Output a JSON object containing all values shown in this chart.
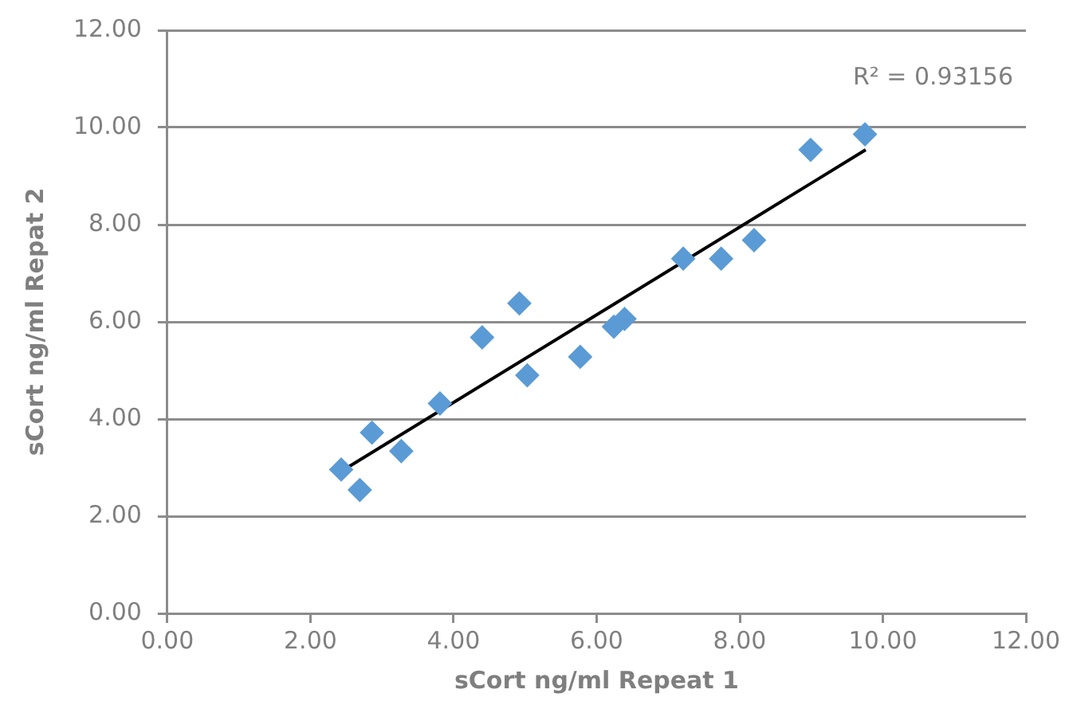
{
  "chart_data": {
    "type": "scatter",
    "xlabel": "sCort ng/ml Repeat 1",
    "ylabel": "sCort ng/ml Repat 2",
    "marker": "diamond",
    "grid": "y",
    "legend": false,
    "xlim": [
      0,
      12
    ],
    "xticks": [
      {
        "value": 0,
        "label": "0.00"
      },
      {
        "value": 2,
        "label": "2.00"
      },
      {
        "value": 4,
        "label": "4.00"
      },
      {
        "value": 6,
        "label": "6.00"
      },
      {
        "value": 8,
        "label": "8.00"
      },
      {
        "value": 10,
        "label": "10.00"
      },
      {
        "value": 12,
        "label": "12.00"
      }
    ],
    "ylim": [
      0,
      12
    ],
    "yticks": [
      {
        "value": 0,
        "label": "0.00"
      },
      {
        "value": 2,
        "label": "2.00"
      },
      {
        "value": 4,
        "label": "4.00"
      },
      {
        "value": 6,
        "label": "6.00"
      },
      {
        "value": 8,
        "label": "8.00"
      },
      {
        "value": 10,
        "label": "10.00"
      },
      {
        "value": 12,
        "label": "12.00"
      }
    ],
    "annotations": [
      "R² = 0.93156"
    ],
    "series": [
      {
        "color": "#5b9bd5",
        "x": [
          2.43,
          2.69,
          2.86,
          3.27,
          3.81,
          4.4,
          4.92,
          5.03,
          5.77,
          6.24,
          6.39,
          7.21,
          7.74,
          8.2,
          8.99,
          9.75
        ],
        "values": [
          2.96,
          2.54,
          3.72,
          3.34,
          4.32,
          5.68,
          6.38,
          4.9,
          5.28,
          5.9,
          6.06,
          7.3,
          7.3,
          7.68,
          9.54,
          9.86
        ]
      },
      {
        "type": "line",
        "color": "#000000",
        "marker": "none",
        "x": [
          2.47,
          9.76
        ],
        "values": [
          2.96,
          9.54
        ]
      }
    ]
  }
}
